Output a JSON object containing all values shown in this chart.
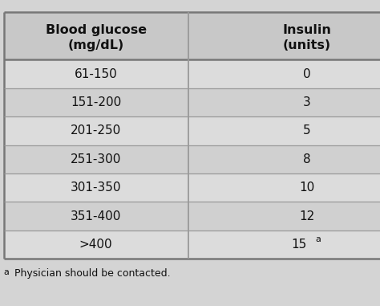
{
  "col1_header_line1": "Blood glucose",
  "col1_header_line2": "(mg/dL)",
  "col2_header_line1": "Insulin",
  "col2_header_line2": "(units)",
  "rows": [
    [
      "61-150",
      "0"
    ],
    [
      "151-200",
      "3"
    ],
    [
      "201-250",
      "5"
    ],
    [
      "251-300",
      "8"
    ],
    [
      "301-350",
      "10"
    ],
    [
      "351-400",
      "12"
    ],
    [
      ">400",
      "15"
    ]
  ],
  "footnote_super": "a",
  "footnote_text": "Physician should be contacted.",
  "bg_color": "#d4d4d4",
  "header_bg": "#c8c8c8",
  "row_bg_light": "#dcdcdc",
  "row_bg_dark": "#d0d0d0",
  "line_color": "#999999",
  "border_color": "#777777",
  "text_color": "#111111",
  "font_size_header": 11.5,
  "font_size_body": 11,
  "font_size_footnote": 9
}
